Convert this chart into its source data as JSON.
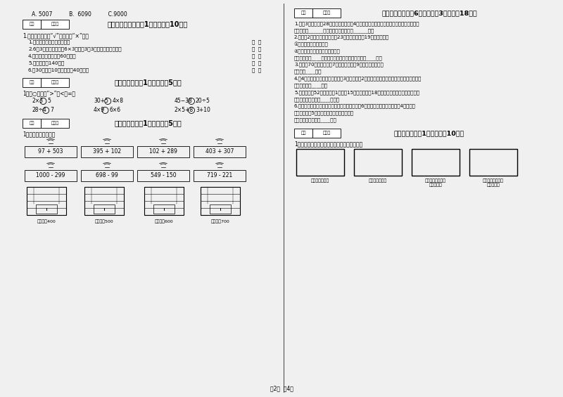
{
  "bg_color": "#f0f0f0",
  "page_bg": "#ffffff",
  "top_left": "A. 5007          B.  6090          C.9000",
  "title5": "五、判断对与错（共1大题，共计10分）",
  "section5_intro": "1.判断。（对的打“√”，错的打“×”）。",
  "section5_items": [
    "1.角的边长越长，角就越大。",
    "2.6和3相乘，可以写作6×3，读作3乘3，口读是三六十八。",
    "4.学校操场环形跑道长60厘米。",
    "5.小军的身高140米。",
    "6.比30厘米多10厘米的线段40厘米。"
  ],
  "title6": "六、比一比（共1大题，共芈5分）",
  "section6_intro": "1、在○里填上“>”、<或=。",
  "section6_row1_left": [
    "2×3",
    "5",
    "30+5",
    "4×8",
    "45-38",
    "20÷5"
  ],
  "section6_row2_left": [
    "28÷4",
    "7",
    "4×9",
    "6×6",
    "2×5+8",
    "3+10"
  ],
  "title7": "七、连一连（共1大题，共芈5分）",
  "section7_intro": "1、估一估，连一连。",
  "section7_top": [
    "97 + 503",
    "395 + 102",
    "102 + 289",
    "403 + 307"
  ],
  "section7_bot": [
    "1000 - 299",
    "698 - 99",
    "549 - 150",
    "719 - 221"
  ],
  "section7_labels": [
    "得数接近400",
    "得数大约500",
    "得数接近600",
    "得数大约700"
  ],
  "title8": "八、解决问题（共6小题，每题3分，共计18分）",
  "section8_items": [
    "1.二（3）班有女生28人，男生比女生少4人，男生有多少人？男生和女生一共有多少人？",
    "答：男生有______人，男生和女生一共有______人。",
    "2.二年级2班上体育课，老师订23名同学打篮球，19名同学做操。",
    "①全班共有多少个同学？",
    "②打篮球的同学比做操的多几人？",
    "答：全班共有____个同学，打篮球的同学比做操的多____人。",
    "3.老师拿70元去买书，亄7套故事书，每変9元，还剩多少元？",
    "答：还剩____元。",
    "4.有4只小兔，小猴的只数是小兔的3倍，现在恓2只小猴分成一组去抬东西，可以分成几组？",
    "答：可以分成____组。",
    "5.停车场停着52辆车，开走1其应为15辆，又开进了18辆，现在停车场还有多少辆车？",
    "答：现在停车场还有____辆车。",
    "6.小华和爸爸、妈妈比赛做计算，小华一分钟算对6道计算题，爸爸的是小华的4倍，妈妈",
    "比爸爸少做对5道，妈妈一分钟做对多少道？",
    "答：妈妈一分钟做对____道。"
  ],
  "title9": "十、综合题（共1大题，共计10分）",
  "section9_intro": "1、把下面的长方形用一条线段按要求分一分。",
  "section9_labels": [
    "分成两个三角形",
    "分成两个四边形",
    "分成一个三角形和\n一个四边形",
    "分成一个三角形和\n一个五边形"
  ],
  "footer": "第2页  兲4页"
}
